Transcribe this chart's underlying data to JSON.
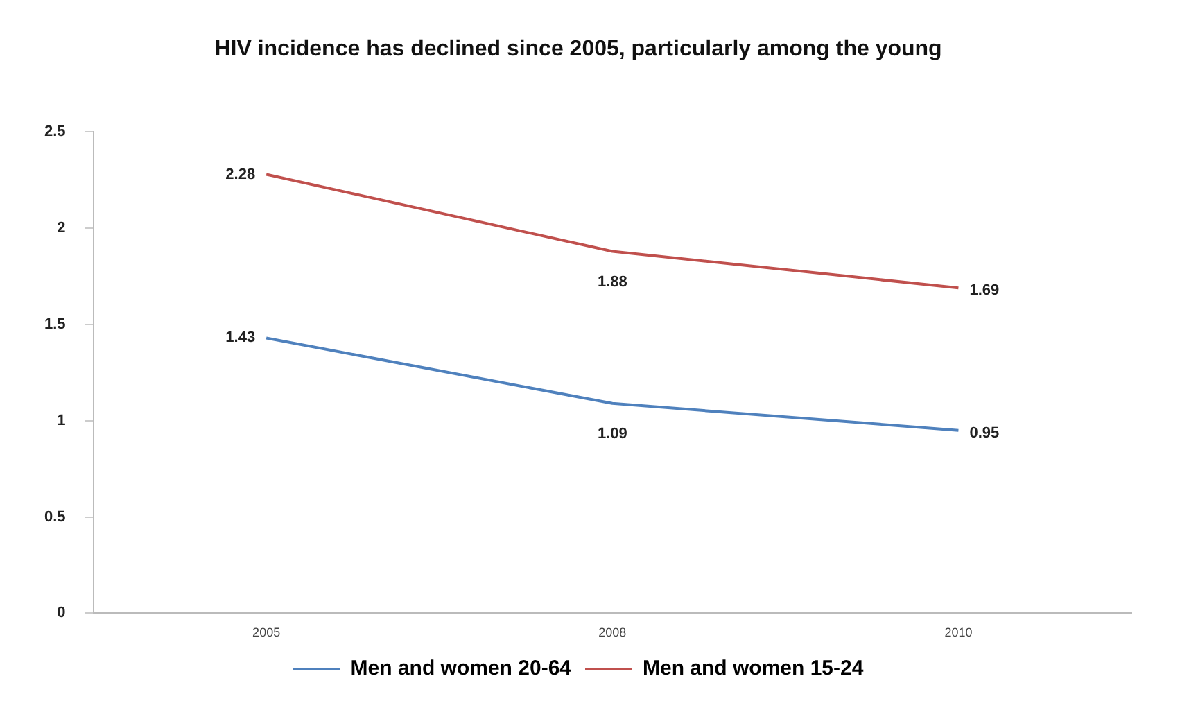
{
  "chart_data": {
    "type": "line",
    "title": "HIV incidence has declined since 2005, particularly among the young",
    "categories": [
      "2005",
      "2008",
      "2010"
    ],
    "series": [
      {
        "name": "Men and women 20-64",
        "color": "#4f81bd",
        "values": [
          1.43,
          1.09,
          0.95
        ]
      },
      {
        "name": "Men and women 15-24",
        "color": "#c0504d",
        "values": [
          2.28,
          1.88,
          1.69
        ]
      }
    ],
    "ylim": [
      0,
      2.5
    ],
    "yticks": [
      0,
      0.5,
      1,
      1.5,
      2,
      2.5
    ],
    "grid": false,
    "legend": "bottom",
    "marker": "none",
    "line_style": "solid",
    "data_labels": true
  }
}
